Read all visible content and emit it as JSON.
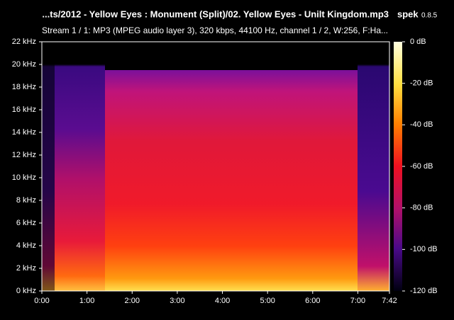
{
  "chart_data": {
    "type": "spectrogram",
    "title": "...ts/2012 - Yellow Eyes : Monument (Split)/02. Yellow Eyes - Unilt Kingdom.mp3",
    "app_name": "spek",
    "app_version": "0.8.5",
    "subtitle": "Stream 1 / 1: MP3 (MPEG audio layer 3), 320 kbps, 44100 Hz, channel 1 / 2, W:256, F:Ha...",
    "xlim": [
      0,
      462
    ],
    "xticks": [
      {
        "value": 0,
        "label": "0:00"
      },
      {
        "value": 60,
        "label": "1:00"
      },
      {
        "value": 120,
        "label": "2:00"
      },
      {
        "value": 180,
        "label": "3:00"
      },
      {
        "value": 240,
        "label": "4:00"
      },
      {
        "value": 300,
        "label": "5:00"
      },
      {
        "value": 360,
        "label": "6:00"
      },
      {
        "value": 420,
        "label": "7:00"
      },
      {
        "value": 462,
        "label": "7:42"
      }
    ],
    "ylim": [
      0,
      22
    ],
    "yticks": [
      {
        "value": 0,
        "label": "0 kHz"
      },
      {
        "value": 2,
        "label": "2 kHz"
      },
      {
        "value": 4,
        "label": "4 kHz"
      },
      {
        "value": 6,
        "label": "6 kHz"
      },
      {
        "value": 8,
        "label": "8 kHz"
      },
      {
        "value": 10,
        "label": "10 kHz"
      },
      {
        "value": 12,
        "label": "12 kHz"
      },
      {
        "value": 14,
        "label": "14 kHz"
      },
      {
        "value": 16,
        "label": "16 kHz"
      },
      {
        "value": 18,
        "label": "18 kHz"
      },
      {
        "value": 20,
        "label": "20 kHz"
      },
      {
        "value": 22,
        "label": "22 kHz"
      }
    ],
    "colorbar_lim": [
      -120,
      0
    ],
    "colorbar_ticks": [
      {
        "value": 0,
        "label": "0 dB"
      },
      {
        "value": -20,
        "label": "-20 dB"
      },
      {
        "value": -40,
        "label": "-40 dB"
      },
      {
        "value": -60,
        "label": "-60 dB"
      },
      {
        "value": -80,
        "label": "-80 dB"
      },
      {
        "value": -100,
        "label": "-100 dB"
      },
      {
        "value": -120,
        "label": "-120 dB"
      }
    ]
  }
}
